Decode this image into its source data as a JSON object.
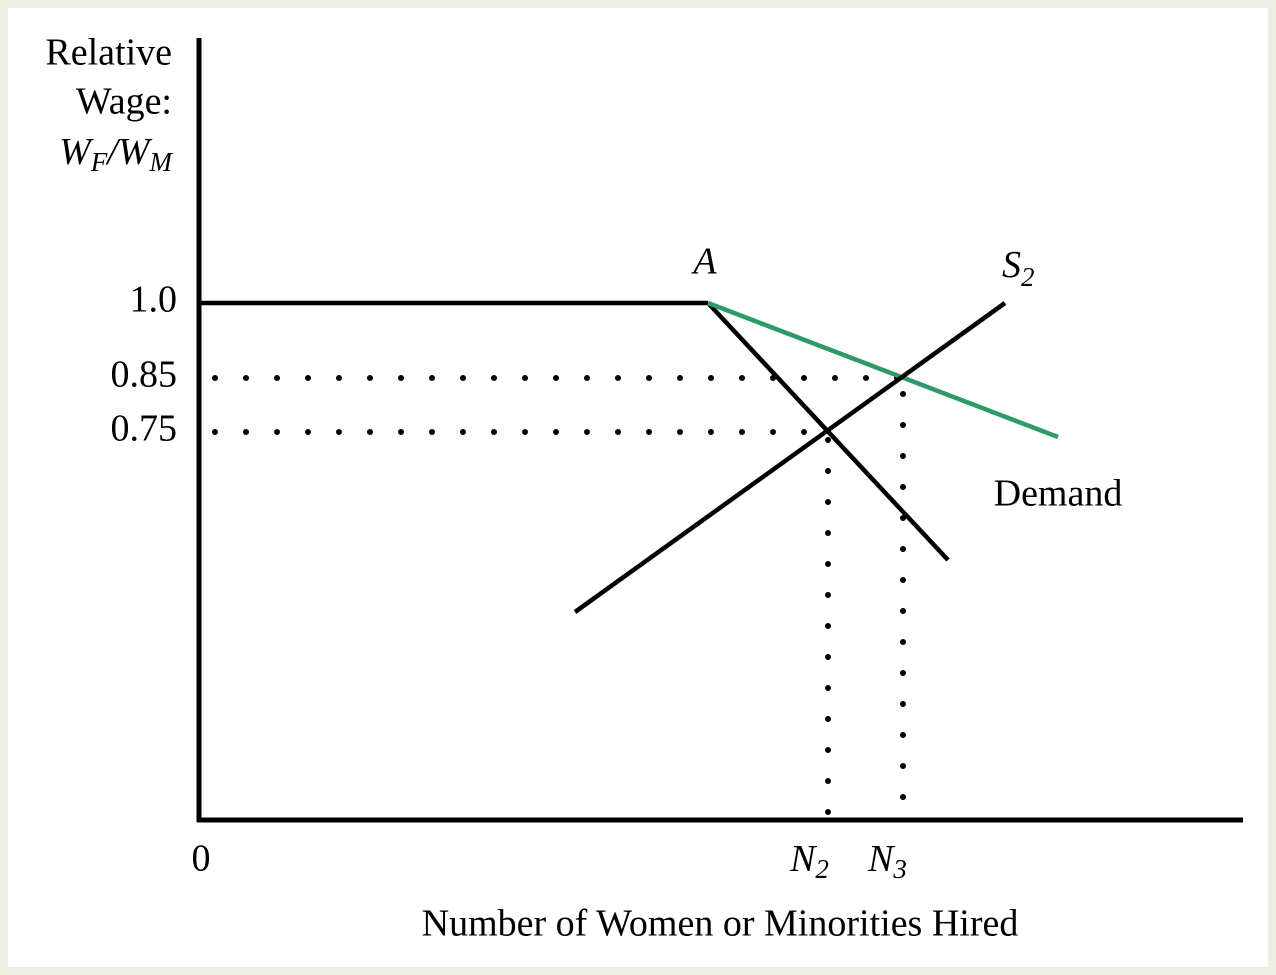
{
  "y_axis": {
    "label_line1": "Relative",
    "label_line2": "Wage:",
    "label_formula": {
      "w1": "W",
      "s1": "F",
      "w2": "/W",
      "s2": "M"
    },
    "ticks": [
      "1.0",
      "0.85",
      "0.75"
    ]
  },
  "x_axis": {
    "origin": "0",
    "label": "Number of Women or Minorities Hired",
    "ticks": [
      {
        "base": "N",
        "sub": "2"
      },
      {
        "base": "N",
        "sub": "3"
      }
    ]
  },
  "point_label": "A",
  "supply_label": {
    "base": "S",
    "sub": "2"
  },
  "demand_label": "Demand"
}
